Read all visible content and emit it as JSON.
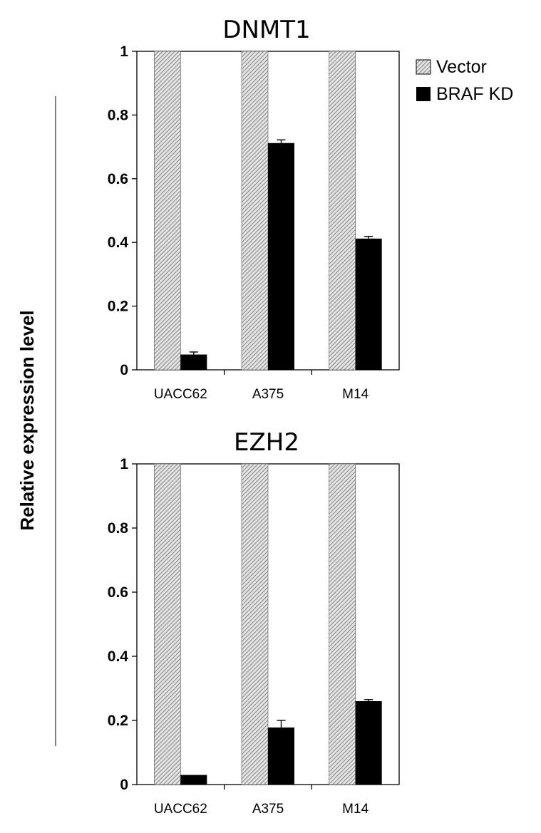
{
  "figure": {
    "ylabel": "Relative expression level",
    "legend": [
      {
        "name": "Vector",
        "pattern": "hatched-gray"
      },
      {
        "name": "BRAF KD",
        "color": "#000000"
      }
    ]
  },
  "chart_data": [
    {
      "type": "bar",
      "title": "DNMT1",
      "categories": [
        "UACC62",
        "A375",
        "M14"
      ],
      "series": [
        {
          "name": "Vector",
          "values": [
            1.0,
            1.0,
            1.0
          ]
        },
        {
          "name": "BRAF KD",
          "values": [
            0.048,
            0.712,
            0.412
          ],
          "errors": [
            0.008,
            0.01,
            0.007
          ]
        }
      ],
      "ylim": [
        0,
        1
      ],
      "yticks": [
        "0",
        "0.2",
        "0.4",
        "0.6",
        "0.8",
        "1"
      ],
      "ylabel": "Relative expression level",
      "legend_position": "top-right"
    },
    {
      "type": "bar",
      "title": "EZH2",
      "categories": [
        "UACC62",
        "A375",
        "M14"
      ],
      "series": [
        {
          "name": "Vector",
          "values": [
            1.0,
            1.0,
            1.0
          ]
        },
        {
          "name": "BRAF KD",
          "values": [
            0.03,
            0.178,
            0.26
          ],
          "errors": [
            0.0,
            0.022,
            0.005
          ]
        }
      ],
      "ylim": [
        0,
        1
      ],
      "yticks": [
        "0",
        "0.2",
        "0.4",
        "0.6",
        "0.8",
        "1"
      ],
      "ylabel": "Relative expression level"
    }
  ]
}
